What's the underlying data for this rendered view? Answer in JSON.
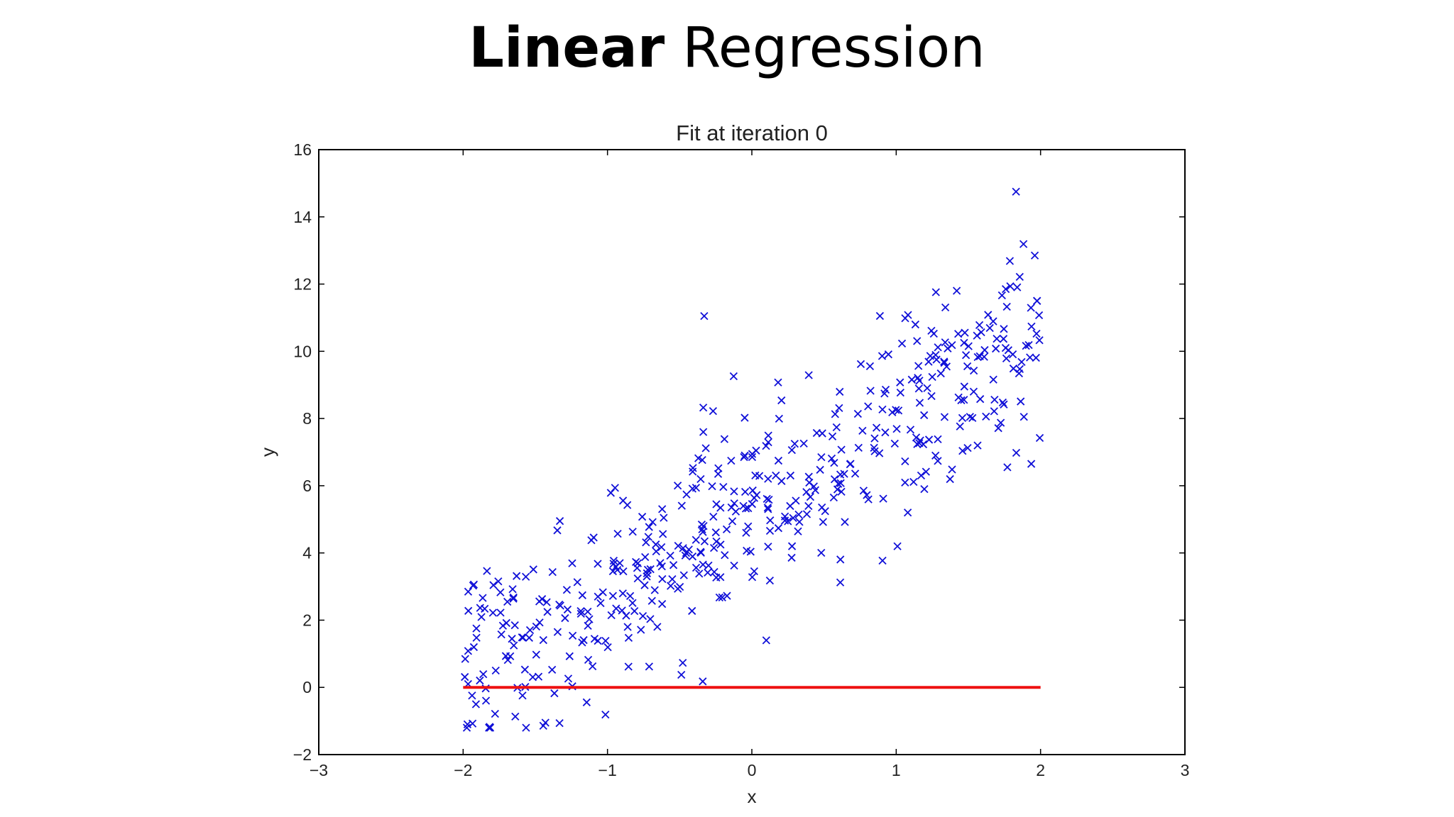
{
  "heading": {
    "bold": "Linear",
    "light": "Regression"
  },
  "chart_data": {
    "type": "scatter",
    "title": "Fit at iteration 0",
    "xlabel": "x",
    "ylabel": "y",
    "xlim": [
      -3,
      3
    ],
    "ylim": [
      -2,
      16
    ],
    "xticks": [
      -3,
      -2,
      -1,
      0,
      1,
      2,
      3
    ],
    "yticks": [
      -2,
      0,
      2,
      4,
      6,
      8,
      10,
      12,
      14,
      16
    ],
    "xtick_labels": [
      "−3",
      "−2",
      "−1",
      "0",
      "1",
      "2",
      "3"
    ],
    "ytick_labels": [
      "−2",
      "0",
      "2",
      "4",
      "6",
      "8",
      "10",
      "12",
      "14",
      "16"
    ],
    "grid": false,
    "legend": "none",
    "colors": {
      "points": "#1010d8",
      "fit_line": "#ee1111",
      "axes": "#000000"
    },
    "fit_line": {
      "x": [
        -2,
        2
      ],
      "y": [
        0,
        0
      ]
    },
    "point_count": 500,
    "point_trend": {
      "slope": 2.5,
      "intercept": 5.5,
      "noise_sd": 1.45,
      "x_range": [
        -2,
        2
      ]
    },
    "notable_points": [
      {
        "x": 1.83,
        "y": 14.75
      },
      {
        "x": -0.33,
        "y": 11.05
      },
      {
        "x": 0.1,
        "y": 1.4
      },
      {
        "x": -1.43,
        "y": -1.05
      },
      {
        "x": -1.97,
        "y": -1.1
      },
      {
        "x": 1.08,
        "y": 5.2
      },
      {
        "x": 1.77,
        "y": 6.55
      },
      {
        "x": 1.96,
        "y": 12.85
      }
    ]
  }
}
